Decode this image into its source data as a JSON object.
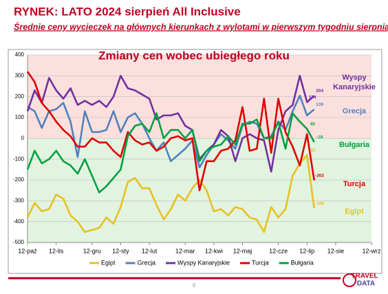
{
  "header": {
    "title": "RYNEK: LATO 2024 sierpień All Inclusive",
    "subtitle": "Średnie ceny wycieczek na głównych kierunkach z wylotami w pierwszym tygodniu sierpnia"
  },
  "chart_data": {
    "type": "line",
    "title": "Zmiany cen wobec ubiegłego roku",
    "categories": [
      "12-paź",
      null,
      null,
      null,
      "12-lis",
      null,
      null,
      null,
      null,
      "12-gru",
      null,
      null,
      null,
      "12-sty",
      null,
      null,
      null,
      "12-lut",
      null,
      null,
      null,
      null,
      "12-mar",
      null,
      null,
      null,
      "12-kwi",
      null,
      null,
      null,
      "12-maj",
      null,
      null,
      null,
      null,
      "12-cze",
      null,
      null,
      null,
      "12-lip",
      null,
      null,
      null,
      "12-sie",
      null,
      null,
      null,
      null,
      "12-wrz"
    ],
    "ylim": [
      -500,
      400
    ],
    "yticks": [
      -500,
      -400,
      -300,
      -200,
      -100,
      0,
      100,
      200,
      300,
      400
    ],
    "series": [
      {
        "name": "Egipt",
        "color": "#e8c020",
        "values": [
          -380,
          -310,
          -350,
          -340,
          -270,
          -290,
          -370,
          -400,
          -450,
          -440,
          -430,
          -380,
          -410,
          -330,
          -210,
          -190,
          -240,
          -240,
          -320,
          -390,
          -340,
          -270,
          -300,
          -240,
          -200,
          -250,
          -350,
          -340,
          -370,
          -330,
          -340,
          -380,
          -390,
          -450,
          -330,
          -380,
          -340,
          -180,
          -120,
          -81,
          -336,
          null,
          null,
          null,
          null,
          null,
          null,
          null,
          null
        ],
        "value_labels": [
          null,
          null,
          null,
          null,
          null,
          null,
          null,
          null,
          null,
          null,
          null,
          null,
          null,
          null,
          null,
          null,
          null,
          null,
          null,
          null,
          null,
          null,
          null,
          null,
          null,
          null,
          null,
          null,
          null,
          null,
          null,
          null,
          null,
          null,
          null,
          null,
          null,
          null,
          null,
          "-81",
          "-336",
          null,
          null,
          null,
          null,
          null,
          null,
          null,
          null
        ]
      },
      {
        "name": "Grecja",
        "color": "#4f81bd",
        "values": [
          150,
          130,
          50,
          130,
          140,
          170,
          80,
          -90,
          130,
          30,
          30,
          40,
          130,
          30,
          100,
          120,
          70,
          0,
          -60,
          -20,
          -110,
          -80,
          -50,
          -10,
          -140,
          -80,
          -30,
          20,
          -10,
          -50,
          60,
          80,
          70,
          0,
          10,
          80,
          40,
          130,
          205,
          110,
          139,
          null,
          null,
          null,
          null,
          null,
          null,
          null,
          null
        ],
        "value_labels": [
          null,
          null,
          null,
          null,
          null,
          null,
          null,
          null,
          null,
          null,
          null,
          null,
          null,
          null,
          null,
          null,
          null,
          null,
          null,
          null,
          null,
          null,
          null,
          null,
          null,
          null,
          null,
          null,
          null,
          null,
          null,
          null,
          null,
          null,
          null,
          null,
          null,
          null,
          null,
          null,
          "139",
          null,
          null,
          null,
          null,
          null,
          null,
          null,
          null
        ]
      },
      {
        "name": "Wyspy Kanaryjskie",
        "color": "#7030a0",
        "values": [
          130,
          230,
          170,
          290,
          230,
          190,
          240,
          160,
          180,
          160,
          180,
          150,
          200,
          300,
          240,
          230,
          210,
          190,
          90,
          110,
          110,
          120,
          60,
          40,
          -100,
          -60,
          -30,
          40,
          10,
          -110,
          0,
          20,
          0,
          -10,
          -160,
          40,
          130,
          160,
          300,
          174,
          204,
          null,
          null,
          null,
          null,
          null,
          null,
          null,
          null
        ],
        "value_labels": [
          null,
          null,
          null,
          null,
          null,
          null,
          null,
          null,
          null,
          null,
          null,
          null,
          null,
          null,
          null,
          null,
          null,
          null,
          null,
          null,
          null,
          null,
          null,
          null,
          null,
          null,
          null,
          null,
          null,
          null,
          null,
          null,
          null,
          null,
          null,
          null,
          null,
          null,
          null,
          "174",
          "204",
          null,
          null,
          null,
          null,
          null,
          null,
          null,
          null
        ]
      },
      {
        "name": "Turcja",
        "color": "#e00000",
        "values": [
          320,
          270,
          170,
          130,
          80,
          40,
          10,
          -40,
          -40,
          0,
          -20,
          -20,
          -60,
          -90,
          30,
          -10,
          -30,
          -20,
          -60,
          -40,
          0,
          10,
          -10,
          0,
          -250,
          -110,
          -110,
          -60,
          -50,
          -10,
          150,
          -60,
          -50,
          190,
          -70,
          190,
          30,
          -40,
          -130,
          20,
          -202,
          null,
          null,
          null,
          null,
          null,
          null,
          null,
          null
        ],
        "value_labels": [
          null,
          null,
          null,
          null,
          null,
          null,
          null,
          null,
          null,
          null,
          null,
          null,
          null,
          null,
          null,
          null,
          null,
          null,
          null,
          null,
          null,
          null,
          null,
          null,
          null,
          null,
          null,
          null,
          null,
          null,
          null,
          null,
          null,
          null,
          null,
          null,
          null,
          null,
          null,
          null,
          "-202",
          null,
          null,
          null,
          null,
          null,
          null,
          null,
          null
        ]
      },
      {
        "name": "Bułgaria",
        "color": "#00a040",
        "values": [
          -150,
          -60,
          -120,
          -100,
          -60,
          -110,
          -130,
          -170,
          -100,
          -180,
          -260,
          -230,
          -190,
          -150,
          10,
          60,
          70,
          30,
          120,
          0,
          40,
          40,
          0,
          40,
          -110,
          -60,
          -40,
          -30,
          10,
          -30,
          70,
          70,
          90,
          0,
          0,
          80,
          -50,
          120,
          80,
          45,
          -18,
          null,
          null,
          null,
          null,
          null,
          null,
          null,
          null
        ],
        "value_labels": [
          null,
          null,
          null,
          null,
          null,
          null,
          null,
          null,
          null,
          null,
          null,
          null,
          null,
          null,
          null,
          null,
          null,
          null,
          null,
          null,
          null,
          null,
          null,
          null,
          null,
          null,
          null,
          null,
          null,
          null,
          null,
          null,
          null,
          null,
          null,
          null,
          null,
          null,
          null,
          "45",
          "-18",
          null,
          null,
          null,
          null,
          null,
          null,
          null,
          null
        ]
      }
    ],
    "legend": "bottom"
  },
  "footer": {
    "page": "9",
    "logo_top": "TRAVEL",
    "logo_bottom": "DATA"
  }
}
